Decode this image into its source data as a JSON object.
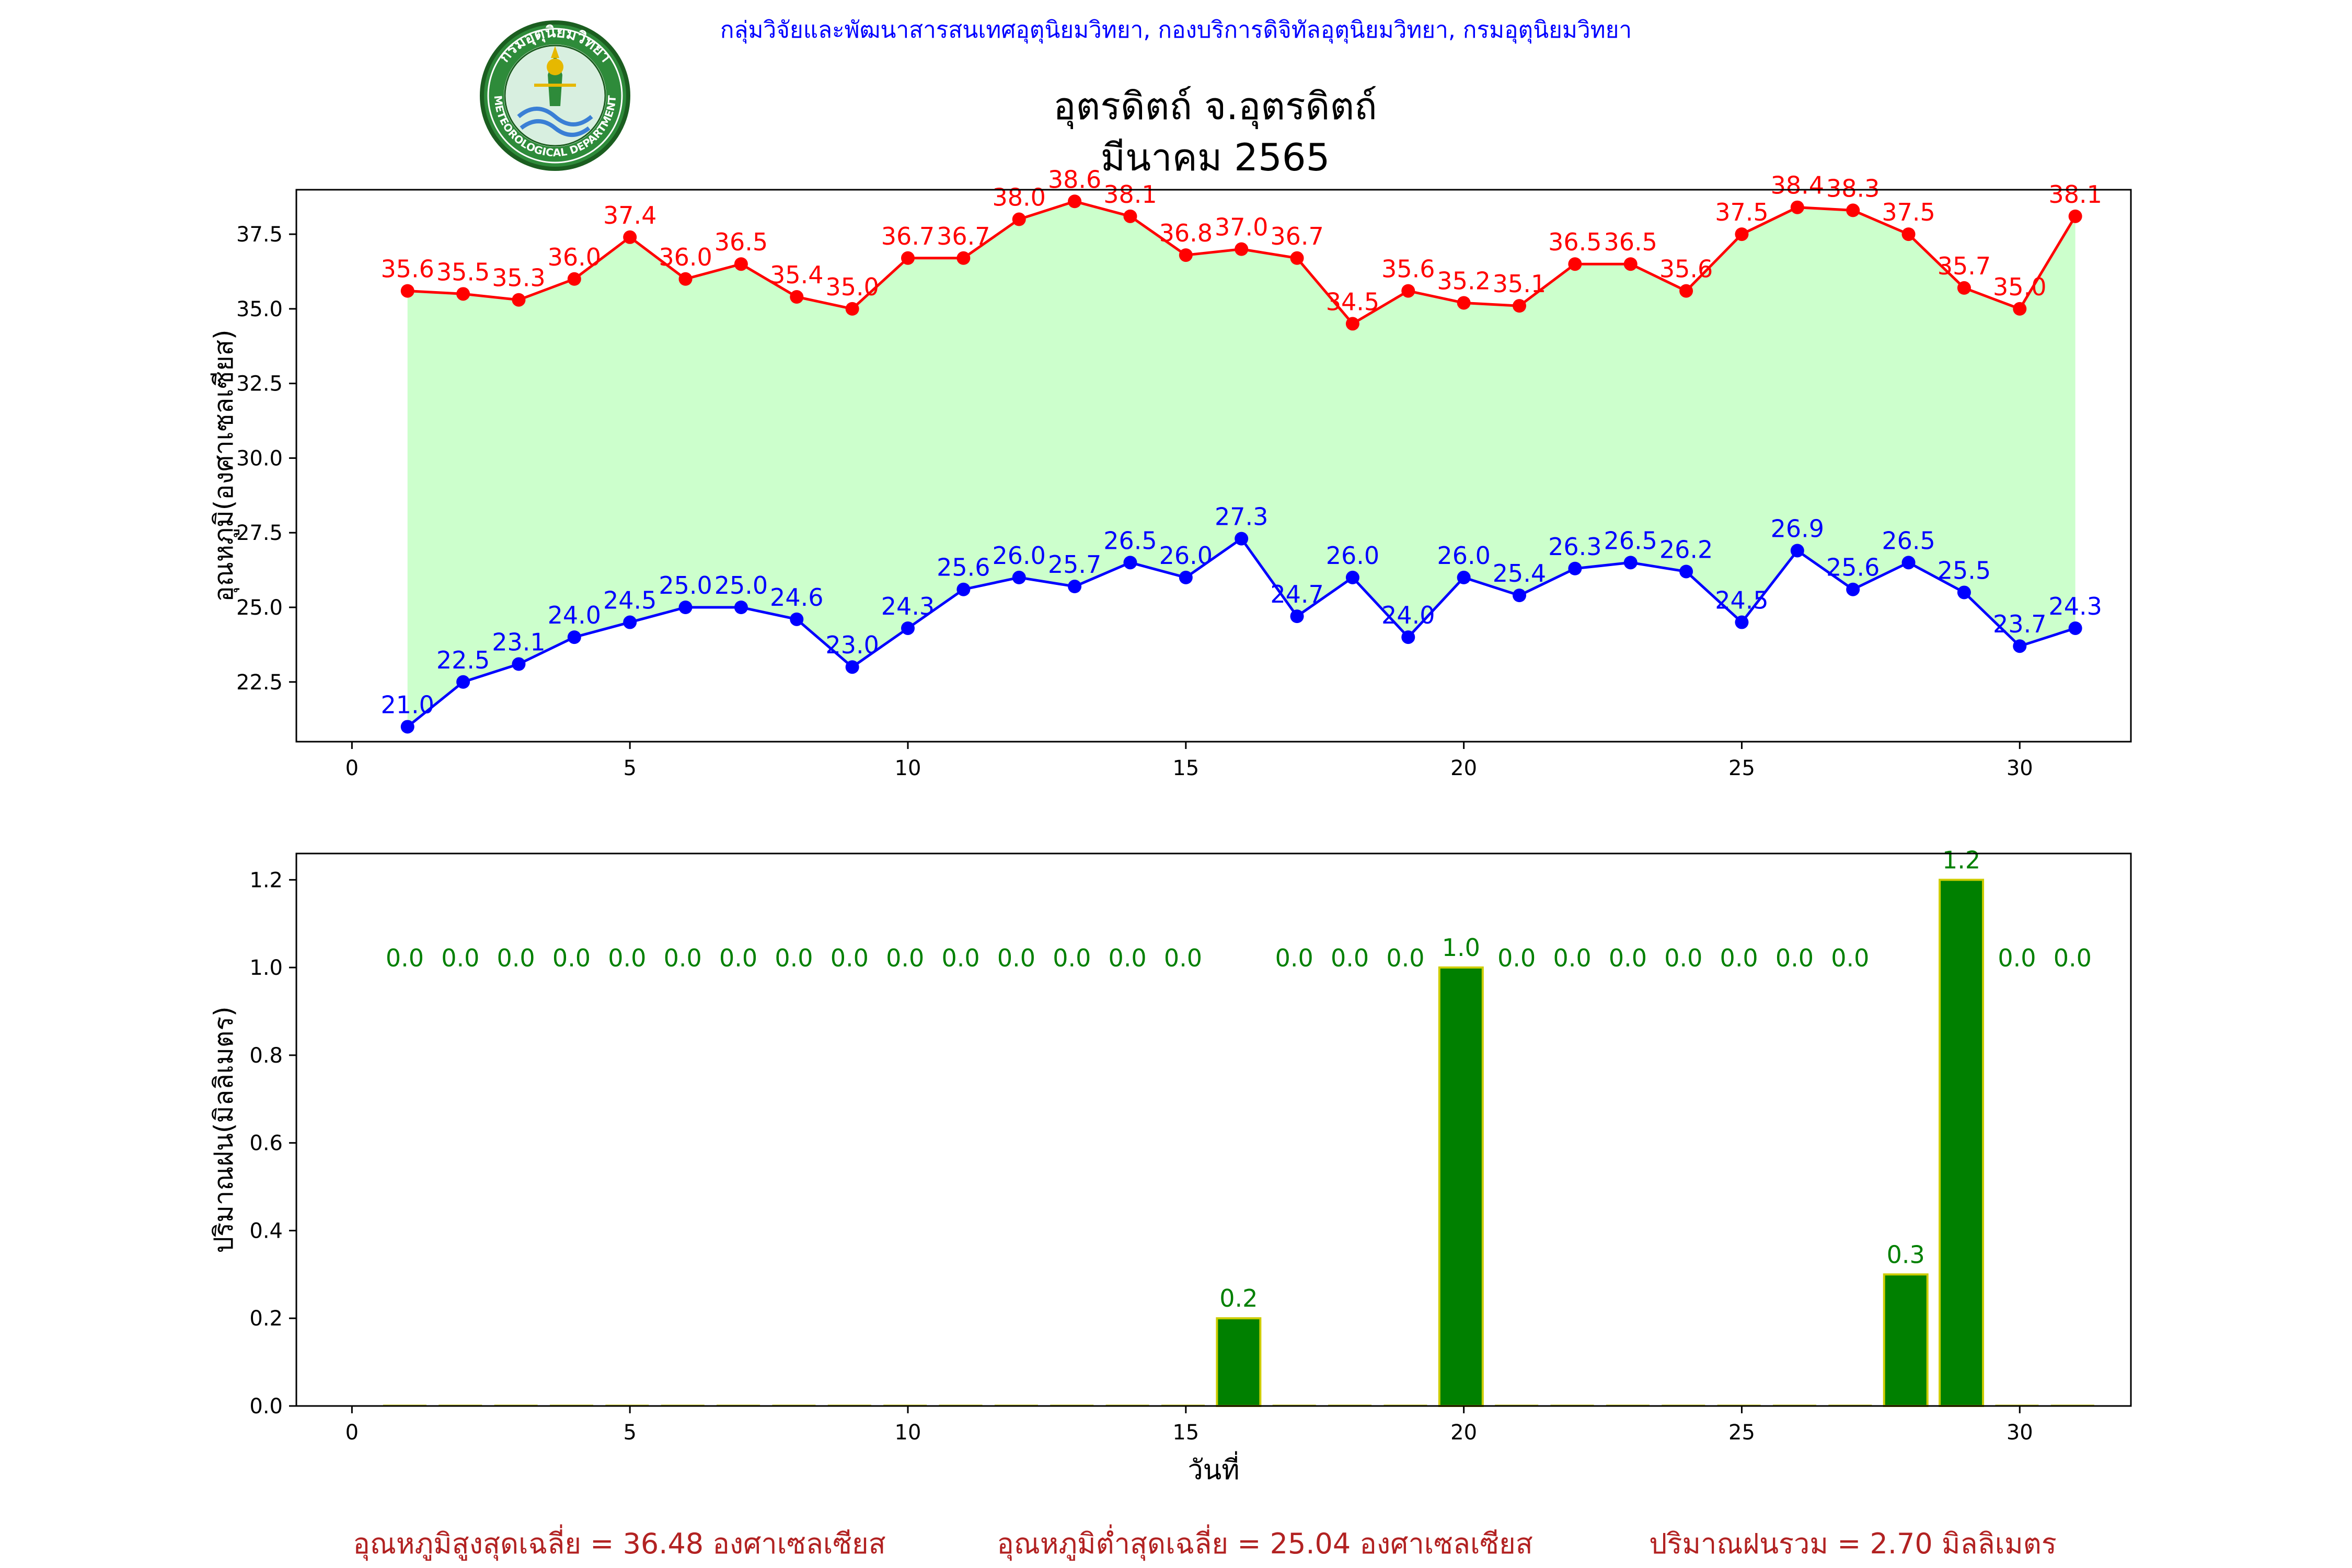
{
  "header": {
    "org_line": "กลุ่มวิจัยและพัฒนาสารสนเทศอุตุนิยมวิทยา, กองบริการดิจิทัลอุตุนิยมวิทยา, กรมอุตุนิยมวิทยา",
    "title_line1": "อุตรดิตถ์ จ.อุตรดิตถ์",
    "title_line2": "มีนาคม 2565"
  },
  "logo": {
    "ring_text_top": "กรมอุตุนิยมวิทยา",
    "ring_text_bottom": "METEOROLOGICAL DEPARTMENT"
  },
  "colors": {
    "max_temp": "#ff0000",
    "min_temp": "#0000ff",
    "fill": "#ccffcc",
    "rain_bar": "#008000",
    "rain_edge": "#cccc00",
    "rain_label": "#008000",
    "org_text": "#0000ff",
    "summary_text": "#b22222"
  },
  "chart_data": [
    {
      "type": "line",
      "ylabel": "อุณหภูมิ(องศาเซลเซียส)",
      "xlim": [
        -1,
        32
      ],
      "ylim": [
        20.5,
        38.99
      ],
      "x_ticks": [
        0,
        5,
        10,
        15,
        20,
        25,
        30
      ],
      "y_ticks": [
        22.5,
        25.0,
        27.5,
        30.0,
        32.5,
        35.0,
        37.5
      ],
      "x": [
        1,
        2,
        3,
        4,
        5,
        6,
        7,
        8,
        9,
        10,
        11,
        12,
        13,
        14,
        15,
        16,
        17,
        18,
        19,
        20,
        21,
        22,
        23,
        24,
        25,
        26,
        27,
        28,
        29,
        30,
        31
      ],
      "series": [
        {
          "values": [
            35.6,
            35.5,
            35.3,
            36.0,
            37.4,
            36.0,
            36.5,
            35.4,
            35.0,
            36.7,
            36.7,
            38.0,
            38.6,
            38.1,
            36.8,
            37.0,
            36.7,
            34.5,
            35.6,
            35.2,
            35.1,
            36.5,
            36.5,
            35.6,
            37.5,
            38.4,
            38.3,
            37.5,
            35.7,
            35.0,
            38.1
          ],
          "labels": [
            "35.6",
            "35.5",
            "35.3",
            "36.0",
            "37.4",
            "36.0",
            "36.5",
            "35.4",
            "35.0",
            "36.7",
            "36.7",
            "38.0",
            "38.6",
            "38.1",
            "36.8",
            "37.0",
            "36.7",
            "34.5",
            "35.6",
            "35.2",
            "35.1",
            "36.5",
            "36.5",
            "35.6",
            "37.5",
            "38.4",
            "38.3",
            "37.5",
            "35.7",
            "35.0",
            "38.1"
          ]
        },
        {
          "values": [
            21.0,
            22.5,
            23.1,
            24.0,
            24.5,
            25.0,
            25.0,
            24.6,
            23.0,
            24.3,
            25.6,
            26.0,
            25.7,
            26.5,
            26.0,
            27.3,
            24.7,
            26.0,
            24.0,
            26.0,
            25.4,
            26.3,
            26.5,
            26.2,
            24.5,
            26.9,
            25.6,
            26.5,
            25.5,
            23.7,
            24.3
          ],
          "labels": [
            "21.0",
            "22.5",
            "23.1",
            "24.0",
            "24.5",
            "25.0",
            "25.0",
            "24.6",
            "23.0",
            "24.3",
            "25.6",
            "26.0",
            "25.7",
            "26.5",
            "26.0",
            "27.3",
            "24.7",
            "26.0",
            "24.0",
            "26.0",
            "25.4",
            "26.3",
            "26.5",
            "26.2",
            "24.5",
            "26.9",
            "25.6",
            "26.5",
            "25.5",
            "23.7",
            "24.3"
          ]
        }
      ],
      "fill_between": true
    },
    {
      "type": "bar",
      "xlabel": "วันที่",
      "ylabel": "ปริมาณฝน(มิลลิเมตร)",
      "xlim": [
        -1,
        32
      ],
      "ylim": [
        0,
        1.26
      ],
      "x_ticks": [
        0,
        5,
        10,
        15,
        20,
        25,
        30
      ],
      "y_ticks": [
        "0.0",
        "0.2",
        "0.4",
        "0.6",
        "0.8",
        "1.0",
        "1.2"
      ],
      "x": [
        1,
        2,
        3,
        4,
        5,
        6,
        7,
        8,
        9,
        10,
        11,
        12,
        13,
        14,
        15,
        16,
        17,
        18,
        19,
        20,
        21,
        22,
        23,
        24,
        25,
        26,
        27,
        28,
        29,
        30,
        31
      ],
      "values": [
        0,
        0,
        0,
        0,
        0,
        0,
        0,
        0,
        0,
        0,
        0,
        0,
        0,
        0,
        0,
        0.2,
        0,
        0,
        0,
        1.0,
        0,
        0,
        0,
        0,
        0,
        0,
        0,
        0.3,
        1.2,
        0,
        0
      ],
      "labels": [
        "0.0",
        "0.0",
        "0.0",
        "0.0",
        "0.0",
        "0.0",
        "0.0",
        "0.0",
        "0.0",
        "0.0",
        "0.0",
        "0.0",
        "0.0",
        "0.0",
        "0.0",
        "0.2",
        "0.0",
        "0.0",
        "0.0",
        "1.0",
        "0.0",
        "0.0",
        "0.0",
        "0.0",
        "0.0",
        "0.0",
        "0.0",
        "0.3",
        "1.2",
        "0.0",
        "0.0"
      ]
    }
  ],
  "summary": {
    "avg_max": "อุณหภูมิสูงสุดเฉลี่ย = 36.48 องศาเซลเซียส",
    "avg_min": "อุณหภูมิต่ำสุดเฉลี่ย = 25.04 องศาเซลเซียส",
    "total_rain": "ปริมาณฝนรวม = 2.70 มิลลิเมตร"
  }
}
